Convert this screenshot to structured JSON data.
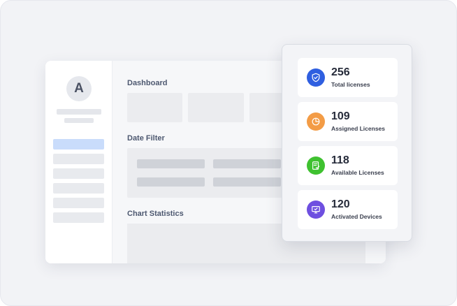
{
  "sidebar": {
    "avatar_initial": "A"
  },
  "main": {
    "dashboard_title": "Dashboard",
    "date_filter_title": "Date Filter",
    "chart_statistics_title": "Chart Statistics"
  },
  "stats": [
    {
      "value": "256",
      "label": "Total licenses",
      "icon": "shield-check-icon",
      "color": "#2f5fe0"
    },
    {
      "value": "109",
      "label": "Assigned Licenses",
      "icon": "pie-chart-icon",
      "color": "#f39c46"
    },
    {
      "value": "118",
      "label": "Available Licenses",
      "icon": "document-check-icon",
      "color": "#3fc130"
    },
    {
      "value": "120",
      "label": "Activated Devices",
      "icon": "monitor-check-icon",
      "color": "#6e4fe0"
    }
  ]
}
